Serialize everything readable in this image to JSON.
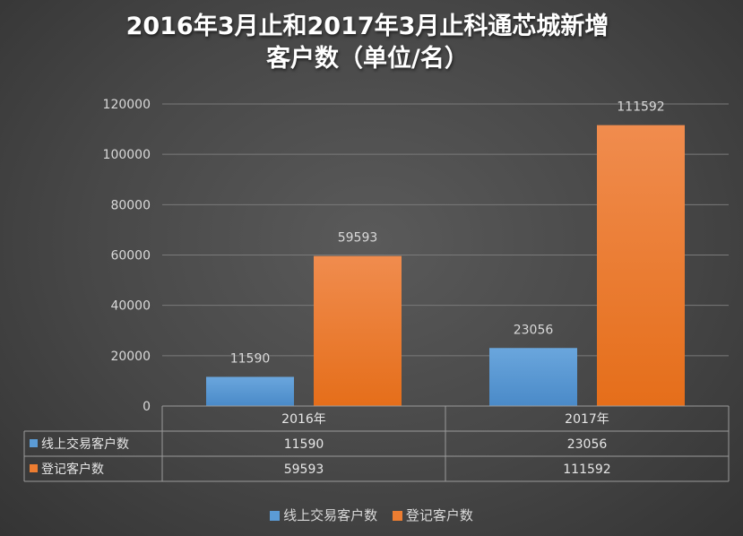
{
  "chart_data": {
    "type": "bar",
    "title_line1": "2016年3月止和2017年3月止科通芯城新增",
    "title_line2": "客户数（单位/名）",
    "categories": [
      "2016年",
      "2017年"
    ],
    "series": [
      {
        "name": "线上交易客户数",
        "values": [
          11590,
          23056
        ],
        "color": "#5b9bd5"
      },
      {
        "name": "登记客户数",
        "values": [
          59593,
          111592
        ],
        "color": "#ed7d31"
      }
    ],
    "ylim": [
      0,
      120000
    ],
    "yticks": [
      "0",
      "20000",
      "40000",
      "60000",
      "80000",
      "100000",
      "120000"
    ],
    "grid": true,
    "legend_position": "bottom",
    "data_table": true
  }
}
